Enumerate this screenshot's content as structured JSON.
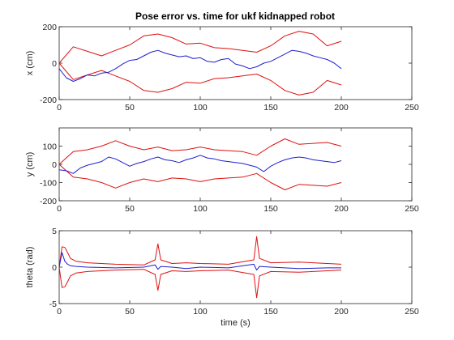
{
  "title": "Pose error vs. time for ukf kidnapped robot",
  "colors": {
    "error": "#1f1fd0",
    "bound": "#e01010",
    "axes": "#262626",
    "background": "#ffffff"
  },
  "chart_data": [
    {
      "type": "line",
      "title": "Pose error vs. time for ukf kidnapped robot",
      "xlabel": "",
      "ylabel": "x (cm)",
      "xlim": [
        0,
        250
      ],
      "ylim": [
        -200,
        200
      ],
      "xticks": [
        "0",
        "50",
        "100",
        "150",
        "200",
        "250"
      ],
      "yticks": [
        "-200",
        "0",
        "200"
      ],
      "grid": false,
      "series": [
        {
          "color": "#1f1fd0",
          "x": [
            0,
            5,
            10,
            15,
            20,
            25,
            30,
            35,
            40,
            45,
            50,
            55,
            60,
            65,
            70,
            75,
            80,
            85,
            90,
            95,
            100,
            105,
            110,
            115,
            120,
            125,
            130,
            135,
            140,
            145,
            150,
            155,
            160,
            165,
            170,
            175,
            180,
            185,
            190,
            195,
            200
          ],
          "y": [
            -30,
            -80,
            -100,
            -85,
            -65,
            -70,
            -55,
            -50,
            -30,
            -5,
            15,
            20,
            40,
            60,
            70,
            55,
            45,
            35,
            40,
            25,
            30,
            10,
            5,
            20,
            25,
            -5,
            -15,
            -30,
            -20,
            0,
            10,
            30,
            50,
            70,
            65,
            55,
            40,
            30,
            20,
            0,
            -30
          ]
        },
        {
          "color": "#e01010",
          "x": [
            0,
            10,
            20,
            30,
            40,
            50,
            60,
            70,
            80,
            90,
            100,
            110,
            120,
            130,
            140,
            150,
            160,
            170,
            180,
            190,
            200
          ],
          "y": [
            0,
            90,
            65,
            40,
            70,
            100,
            150,
            160,
            140,
            105,
            110,
            85,
            80,
            70,
            60,
            95,
            150,
            175,
            160,
            95,
            120
          ]
        },
        {
          "color": "#e01010",
          "x": [
            0,
            10,
            20,
            30,
            40,
            50,
            60,
            70,
            80,
            90,
            100,
            110,
            120,
            130,
            140,
            150,
            160,
            170,
            180,
            190,
            200
          ],
          "y": [
            0,
            -90,
            -65,
            -40,
            -70,
            -100,
            -150,
            -160,
            -140,
            -105,
            -110,
            -85,
            -80,
            -70,
            -60,
            -95,
            -150,
            -175,
            -160,
            -95,
            -120
          ]
        }
      ]
    },
    {
      "type": "line",
      "xlabel": "",
      "ylabel": "y (cm)",
      "xlim": [
        0,
        250
      ],
      "ylim": [
        -200,
        200
      ],
      "xticks": [
        "0",
        "50",
        "100",
        "150",
        "200",
        "250"
      ],
      "yticks": [
        "-200",
        "-100",
        "0",
        "100"
      ],
      "grid": false,
      "series": [
        {
          "color": "#1f1fd0",
          "x": [
            0,
            5,
            10,
            15,
            20,
            25,
            30,
            35,
            40,
            45,
            50,
            55,
            60,
            65,
            70,
            75,
            80,
            85,
            90,
            95,
            100,
            105,
            110,
            115,
            120,
            125,
            130,
            135,
            140,
            145,
            150,
            155,
            160,
            165,
            170,
            175,
            180,
            185,
            190,
            195,
            200
          ],
          "y": [
            -30,
            -35,
            -50,
            -20,
            -5,
            5,
            15,
            40,
            30,
            10,
            -10,
            5,
            15,
            30,
            40,
            25,
            20,
            10,
            25,
            35,
            50,
            35,
            30,
            20,
            15,
            10,
            5,
            -5,
            -15,
            -40,
            -10,
            10,
            25,
            35,
            40,
            35,
            25,
            20,
            15,
            10,
            20
          ]
        },
        {
          "color": "#e01010",
          "x": [
            0,
            10,
            20,
            30,
            40,
            50,
            60,
            70,
            80,
            90,
            100,
            110,
            120,
            130,
            140,
            150,
            160,
            170,
            180,
            190,
            200
          ],
          "y": [
            0,
            70,
            80,
            100,
            130,
            100,
            80,
            95,
            75,
            80,
            95,
            80,
            75,
            70,
            50,
            100,
            140,
            110,
            115,
            120,
            100
          ]
        },
        {
          "color": "#e01010",
          "x": [
            0,
            10,
            20,
            30,
            40,
            50,
            60,
            70,
            80,
            90,
            100,
            110,
            120,
            130,
            140,
            150,
            160,
            170,
            180,
            190,
            200
          ],
          "y": [
            0,
            -70,
            -80,
            -100,
            -130,
            -100,
            -80,
            -95,
            -75,
            -80,
            -95,
            -80,
            -75,
            -70,
            -50,
            -100,
            -140,
            -110,
            -115,
            -120,
            -100
          ]
        }
      ]
    },
    {
      "type": "line",
      "xlabel": "time (s)",
      "ylabel": "theta (rad)",
      "xlim": [
        0,
        250
      ],
      "ylim": [
        -5,
        5
      ],
      "xticks": [
        "0",
        "50",
        "100",
        "150",
        "200",
        "250"
      ],
      "yticks": [
        "-5",
        "0",
        "5"
      ],
      "grid": false,
      "series": [
        {
          "color": "#1f1fd0",
          "x": [
            0,
            2,
            4,
            6,
            8,
            12,
            20,
            40,
            60,
            68,
            70,
            72,
            80,
            90,
            100,
            120,
            138,
            140,
            142,
            150,
            170,
            190,
            200
          ],
          "y": [
            0,
            2.0,
            0.8,
            0.4,
            0.2,
            0.1,
            0.0,
            -0.1,
            0.0,
            0.3,
            -0.3,
            0.1,
            0.0,
            -0.2,
            0.0,
            -0.1,
            0.4,
            -0.4,
            0.1,
            0.0,
            -0.2,
            -0.1,
            -0.1
          ]
        },
        {
          "color": "#e01010",
          "x": [
            0,
            2,
            4,
            6,
            8,
            12,
            20,
            30,
            40,
            60,
            68,
            70,
            72,
            80,
            90,
            100,
            120,
            138,
            140,
            142,
            150,
            170,
            190,
            200
          ],
          "y": [
            0,
            2.8,
            2.7,
            2.0,
            1.2,
            0.8,
            0.6,
            0.5,
            0.4,
            0.3,
            1.0,
            3.2,
            1.0,
            0.5,
            0.6,
            0.5,
            0.4,
            1.0,
            4.2,
            1.2,
            0.6,
            0.7,
            0.5,
            0.4
          ]
        },
        {
          "color": "#e01010",
          "x": [
            0,
            2,
            4,
            6,
            8,
            12,
            20,
            30,
            40,
            60,
            68,
            70,
            72,
            80,
            90,
            100,
            120,
            138,
            140,
            142,
            150,
            170,
            190,
            200
          ],
          "y": [
            0,
            -2.8,
            -2.7,
            -2.0,
            -1.2,
            -0.8,
            -0.6,
            -0.5,
            -0.4,
            -0.3,
            -1.0,
            -3.2,
            -1.0,
            -0.5,
            -0.6,
            -0.5,
            -0.4,
            -1.0,
            -4.2,
            -1.2,
            -0.6,
            -0.7,
            -0.5,
            -0.4
          ]
        }
      ]
    }
  ]
}
